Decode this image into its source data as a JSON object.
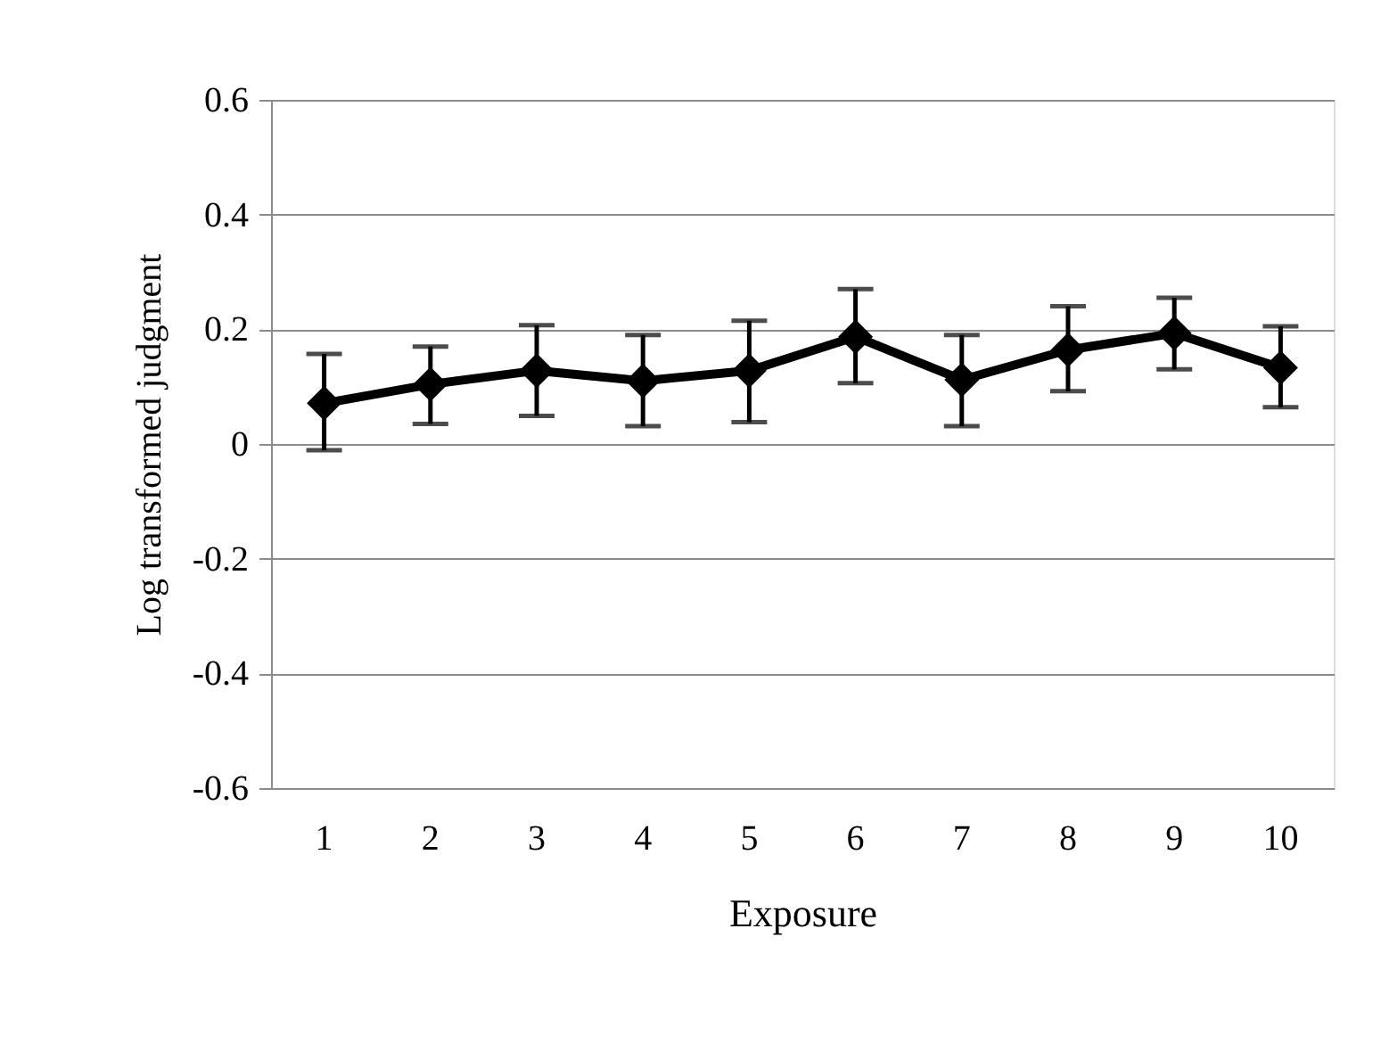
{
  "chart_data": {
    "type": "line",
    "xlabel": "Exposure",
    "ylabel": "Log transformed judgment",
    "categories": [
      "1",
      "2",
      "3",
      "4",
      "5",
      "6",
      "7",
      "8",
      "9",
      "10"
    ],
    "series": [
      {
        "color": "#000000",
        "values": [
          0.071,
          0.104,
          0.128,
          0.11,
          0.128,
          0.187,
          0.112,
          0.164,
          0.193,
          0.133
        ],
        "errors": [
          [
            -0.011,
            0.157
          ],
          [
            0.035,
            0.17
          ],
          [
            0.049,
            0.207
          ],
          [
            0.031,
            0.19
          ],
          [
            0.038,
            0.215
          ],
          [
            0.106,
            0.27
          ],
          [
            0.031,
            0.19
          ],
          [
            0.092,
            0.24
          ],
          [
            0.13,
            0.255
          ],
          [
            0.064,
            0.205
          ]
        ]
      }
    ],
    "ylim": [
      -0.6,
      0.6
    ],
    "yticks": [
      -0.6,
      -0.4,
      -0.2,
      0,
      0.2,
      0.4,
      0.6
    ],
    "grid": "y",
    "marker": "diamond",
    "line_style": "solid"
  }
}
